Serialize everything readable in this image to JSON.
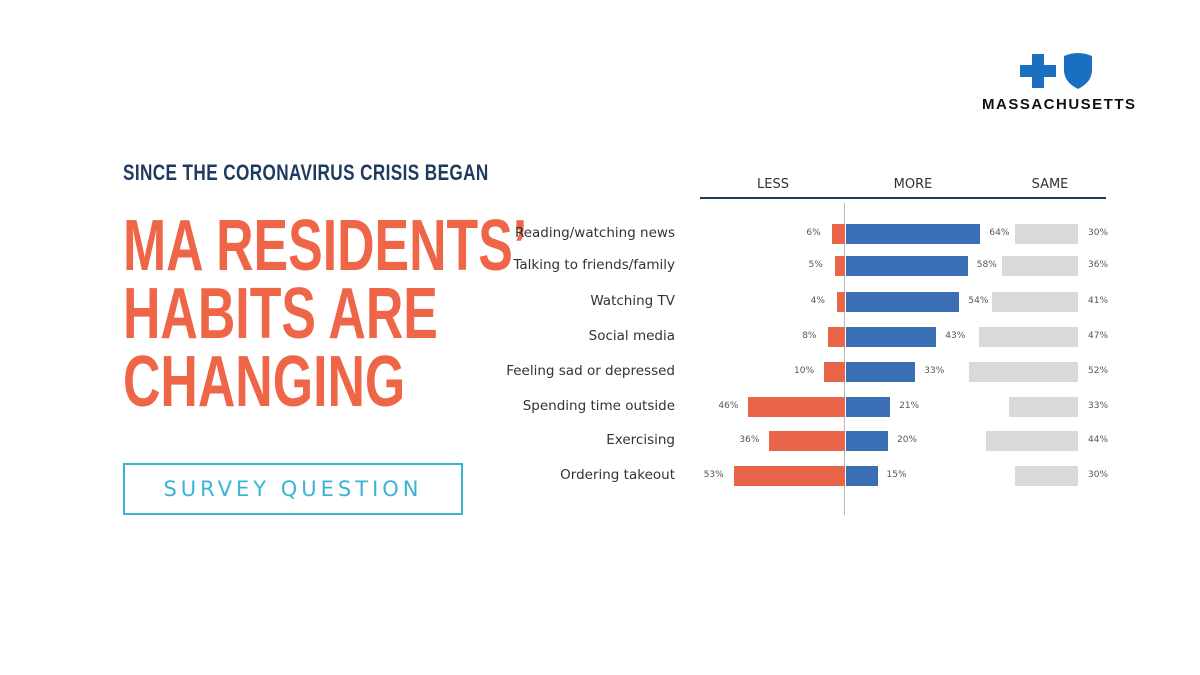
{
  "logo": {
    "text": "MASSACHUSETTS"
  },
  "subtitle": "SINCE THE CORONAVIRUS CRISIS BEGAN",
  "title_lines": [
    "MA RESIDENTS’",
    "HABITS ARE",
    "CHANGING"
  ],
  "survey_button": "SURVEY QUESTION",
  "chart_data": {
    "type": "bar",
    "orientation": "horizontal-diverging",
    "series_headers": {
      "less": "LESS",
      "more": "MORE",
      "same": "SAME"
    },
    "categories": [
      "Reading/watching news",
      "Talking to friends/family",
      "Watching TV",
      "Social media",
      "Feeling sad or depressed",
      "Spending time outside",
      "Exercising",
      "Ordering takeout"
    ],
    "series": [
      {
        "name": "LESS",
        "color": "#e8654a",
        "values": [
          6,
          5,
          4,
          8,
          10,
          46,
          36,
          53
        ],
        "labels": [
          "6%",
          "5%",
          "4%",
          "8%",
          "10%",
          "46%",
          "36%",
          "53%"
        ]
      },
      {
        "name": "MORE",
        "color": "#3a6fb5",
        "values": [
          64,
          58,
          54,
          43,
          33,
          21,
          20,
          15
        ],
        "labels": [
          "64%",
          "58%",
          "54%",
          "43%",
          "33%",
          "21%",
          "20%",
          "15%"
        ]
      },
      {
        "name": "SAME",
        "color": "#d9d9d9",
        "values": [
          30,
          36,
          41,
          47,
          52,
          33,
          44,
          30
        ],
        "labels": [
          "30%",
          "36%",
          "41%",
          "47%",
          "52%",
          "33%",
          "44%",
          "30%"
        ]
      }
    ],
    "unit": "%"
  }
}
